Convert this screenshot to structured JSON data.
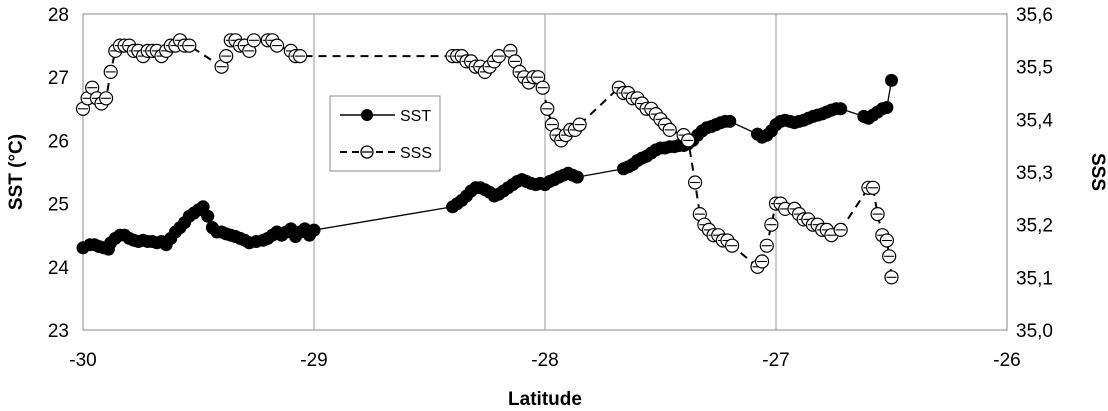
{
  "chart_data": {
    "type": "scatter",
    "xlabel": "Latitude",
    "ylabel_left": "SST (°C)",
    "ylabel_right": "SSS",
    "xlim": [
      -30,
      -26
    ],
    "ylim_left": [
      23,
      28
    ],
    "ylim_right": [
      35.0,
      35.6
    ],
    "x_ticks": [
      "-30",
      "-29",
      "-28",
      "-27",
      "-26"
    ],
    "x_tick_values": [
      -30,
      -29,
      -28,
      -27,
      -26
    ],
    "y_left_ticks": [
      "23",
      "24",
      "25",
      "26",
      "27",
      "28"
    ],
    "y_left_tick_values": [
      23,
      24,
      25,
      26,
      27,
      28
    ],
    "y_right_ticks": [
      "35,0",
      "35,1",
      "35,2",
      "35,3",
      "35,4",
      "35,5",
      "35,6"
    ],
    "y_right_tick_values": [
      35.0,
      35.1,
      35.2,
      35.3,
      35.4,
      35.5,
      35.6
    ],
    "grid": "vertical",
    "legend_position": "upper-middle",
    "series": [
      {
        "name": "SST",
        "axis": "left",
        "line": "solid",
        "marker": "filled-circle",
        "color": "#000000",
        "x": [
          -30.0,
          -29.97,
          -29.95,
          -29.93,
          -29.91,
          -29.89,
          -29.88,
          -29.86,
          -29.84,
          -29.82,
          -29.8,
          -29.78,
          -29.76,
          -29.74,
          -29.72,
          -29.7,
          -29.68,
          -29.66,
          -29.64,
          -29.62,
          -29.6,
          -29.58,
          -29.56,
          -29.54,
          -29.52,
          -29.5,
          -29.48,
          -29.46,
          -29.44,
          -29.42,
          -29.4,
          -29.38,
          -29.36,
          -29.34,
          -29.32,
          -29.3,
          -29.28,
          -29.25,
          -29.22,
          -29.2,
          -29.18,
          -29.16,
          -29.14,
          -29.12,
          -29.1,
          -29.08,
          -29.06,
          -29.04,
          -29.02,
          -29.0,
          -28.4,
          -28.38,
          -28.36,
          -28.34,
          -28.32,
          -28.3,
          -28.28,
          -28.26,
          -28.24,
          -28.22,
          -28.2,
          -28.18,
          -28.16,
          -28.14,
          -28.12,
          -28.1,
          -28.08,
          -28.06,
          -28.04,
          -28.02,
          -28.0,
          -27.98,
          -27.96,
          -27.94,
          -27.92,
          -27.9,
          -27.88,
          -27.86,
          -27.66,
          -27.64,
          -27.62,
          -27.6,
          -27.58,
          -27.56,
          -27.54,
          -27.52,
          -27.5,
          -27.48,
          -27.46,
          -27.44,
          -27.42,
          -27.4,
          -27.38,
          -27.36,
          -27.34,
          -27.32,
          -27.3,
          -27.28,
          -27.26,
          -27.24,
          -27.22,
          -27.2,
          -27.08,
          -27.06,
          -27.04,
          -27.02,
          -27.0,
          -26.98,
          -26.96,
          -26.94,
          -26.92,
          -26.9,
          -26.88,
          -26.86,
          -26.84,
          -26.82,
          -26.8,
          -26.78,
          -26.76,
          -26.74,
          -26.72,
          -26.62,
          -26.6,
          -26.58,
          -26.56,
          -26.54,
          -26.52,
          -26.5
        ],
        "y": [
          24.3,
          24.35,
          24.35,
          24.32,
          24.3,
          24.28,
          24.38,
          24.45,
          24.5,
          24.5,
          24.45,
          24.42,
          24.4,
          24.42,
          24.4,
          24.4,
          24.38,
          24.4,
          24.35,
          24.45,
          24.55,
          24.62,
          24.7,
          24.8,
          24.85,
          24.9,
          24.95,
          24.8,
          24.62,
          24.55,
          24.55,
          24.52,
          24.5,
          24.48,
          24.45,
          24.42,
          24.38,
          24.4,
          24.42,
          24.45,
          24.5,
          24.55,
          24.5,
          24.55,
          24.6,
          24.48,
          24.55,
          24.6,
          24.5,
          24.58,
          24.95,
          25.0,
          25.05,
          25.12,
          25.2,
          25.25,
          25.25,
          25.22,
          25.18,
          25.12,
          25.15,
          25.2,
          25.25,
          25.3,
          25.35,
          25.38,
          25.35,
          25.32,
          25.3,
          25.32,
          25.3,
          25.35,
          25.38,
          25.42,
          25.45,
          25.48,
          25.45,
          25.42,
          25.55,
          25.58,
          25.62,
          25.68,
          25.72,
          25.75,
          25.8,
          25.85,
          25.88,
          25.88,
          25.9,
          25.9,
          25.92,
          25.92,
          25.95,
          26.0,
          26.08,
          26.15,
          26.2,
          26.22,
          26.25,
          26.28,
          26.3,
          26.3,
          26.1,
          26.05,
          26.08,
          26.15,
          26.25,
          26.3,
          26.32,
          26.3,
          26.28,
          26.3,
          26.32,
          26.35,
          26.38,
          26.4,
          26.42,
          26.45,
          26.48,
          26.5,
          26.5,
          26.38,
          26.35,
          26.4,
          26.45,
          26.5,
          26.52,
          26.95
        ],
        "polyline_x": [
          -30.0,
          -29.97,
          -29.95,
          -29.93,
          -29.91,
          -29.89,
          -29.88,
          -29.86,
          -29.84,
          -29.82,
          -29.8,
          -29.78,
          -29.76,
          -29.74,
          -29.72,
          -29.7,
          -29.68,
          -29.66,
          -29.64,
          -29.62,
          -29.6,
          -29.58,
          -29.56,
          -29.54,
          -29.52,
          -29.5,
          -29.48,
          -29.46,
          -29.44,
          -29.42,
          -29.4,
          -29.38,
          -29.36,
          -29.34,
          -29.32,
          -29.3,
          -29.28,
          -29.25,
          -29.22,
          -29.2,
          -29.18,
          -29.16,
          -29.14,
          -29.12,
          -29.1,
          -29.08,
          -29.06,
          -29.04,
          -29.02,
          -29.0,
          -28.4,
          -28.38,
          -28.36,
          -28.34,
          -28.32,
          -28.3,
          -28.28,
          -28.26,
          -28.24,
          -28.22,
          -28.2,
          -28.18,
          -28.16,
          -28.14,
          -28.12,
          -28.1,
          -28.08,
          -28.06,
          -28.04,
          -28.02,
          -28.0,
          -27.98,
          -27.96,
          -27.94,
          -27.92,
          -27.9,
          -27.88,
          -27.86,
          -27.66,
          -27.64,
          -27.62,
          -27.6,
          -27.58,
          -27.56,
          -27.54,
          -27.52,
          -27.5,
          -27.48,
          -27.46,
          -27.44,
          -27.42,
          -27.4,
          -27.38,
          -27.36,
          -27.34,
          -27.32,
          -27.3,
          -27.28,
          -27.26,
          -27.24,
          -27.22,
          -27.2,
          -27.08,
          -27.06,
          -27.04,
          -27.02,
          -27.0,
          -26.98,
          -26.96,
          -26.94,
          -26.92,
          -26.9,
          -26.88,
          -26.86,
          -26.84,
          -26.82,
          -26.8,
          -26.78,
          -26.76,
          -26.74,
          -26.72,
          -26.62,
          -26.6,
          -26.58,
          -26.56,
          -26.54,
          -26.52,
          -26.5
        ]
      },
      {
        "name": "SSS",
        "axis": "right",
        "line": "dashed",
        "marker": "open-circle",
        "color": "#000000",
        "x": [
          -30.0,
          -29.98,
          -29.96,
          -29.94,
          -29.92,
          -29.9,
          -29.88,
          -29.86,
          -29.84,
          -29.82,
          -29.8,
          -29.78,
          -29.76,
          -29.74,
          -29.72,
          -29.7,
          -29.68,
          -29.66,
          -29.64,
          -29.62,
          -29.6,
          -29.58,
          -29.56,
          -29.54,
          -29.4,
          -29.38,
          -29.36,
          -29.34,
          -29.32,
          -29.3,
          -29.28,
          -29.26,
          -29.2,
          -29.18,
          -29.16,
          -29.1,
          -29.08,
          -29.06,
          -28.4,
          -28.38,
          -28.36,
          -28.34,
          -28.32,
          -28.3,
          -28.28,
          -28.26,
          -28.24,
          -28.22,
          -28.2,
          -28.15,
          -28.13,
          -28.11,
          -28.09,
          -28.07,
          -28.05,
          -28.03,
          -28.01,
          -27.99,
          -27.97,
          -27.95,
          -27.93,
          -27.91,
          -27.89,
          -27.87,
          -27.85,
          -27.68,
          -27.66,
          -27.64,
          -27.62,
          -27.6,
          -27.58,
          -27.56,
          -27.54,
          -27.52,
          -27.5,
          -27.48,
          -27.46,
          -27.4,
          -27.38,
          -27.35,
          -27.33,
          -27.31,
          -27.29,
          -27.27,
          -27.25,
          -27.23,
          -27.21,
          -27.19,
          -27.08,
          -27.06,
          -27.04,
          -27.02,
          -27.0,
          -26.98,
          -26.96,
          -26.92,
          -26.9,
          -26.88,
          -26.86,
          -26.84,
          -26.82,
          -26.8,
          -26.78,
          -26.76,
          -26.72,
          -26.6,
          -26.58,
          -26.56,
          -26.54,
          -26.52,
          -26.51,
          -26.5
        ],
        "y": [
          35.42,
          35.44,
          35.46,
          35.44,
          35.43,
          35.44,
          35.49,
          35.53,
          35.54,
          35.54,
          35.54,
          35.53,
          35.53,
          35.52,
          35.53,
          35.53,
          35.53,
          35.52,
          35.53,
          35.54,
          35.54,
          35.55,
          35.54,
          35.54,
          35.5,
          35.52,
          35.55,
          35.55,
          35.54,
          35.54,
          35.53,
          35.55,
          35.55,
          35.55,
          35.54,
          35.53,
          35.52,
          35.52,
          35.52,
          35.52,
          35.52,
          35.51,
          35.51,
          35.5,
          35.5,
          35.49,
          35.5,
          35.51,
          35.52,
          35.53,
          35.51,
          35.49,
          35.48,
          35.47,
          35.48,
          35.48,
          35.46,
          35.42,
          35.39,
          35.37,
          35.36,
          35.37,
          35.38,
          35.38,
          35.39,
          35.46,
          35.45,
          35.45,
          35.44,
          35.44,
          35.43,
          35.42,
          35.42,
          35.41,
          35.4,
          35.39,
          35.38,
          35.37,
          35.36,
          35.28,
          35.22,
          35.2,
          35.19,
          35.18,
          35.18,
          35.17,
          35.17,
          35.16,
          35.12,
          35.13,
          35.16,
          35.2,
          35.24,
          35.24,
          35.23,
          35.23,
          35.22,
          35.21,
          35.21,
          35.2,
          35.2,
          35.19,
          35.19,
          35.18,
          35.19,
          35.27,
          35.27,
          35.22,
          35.18,
          35.17,
          35.14,
          35.1
        ],
        "polyline_x": [
          -30.0,
          -29.98,
          -29.96,
          -29.94,
          -29.92,
          -29.9,
          -29.88,
          -29.86,
          -29.84,
          -29.82,
          -29.8,
          -29.78,
          -29.76,
          -29.74,
          -29.72,
          -29.7,
          -29.68,
          -29.66,
          -29.64,
          -29.62,
          -29.6,
          -29.58,
          -29.56,
          -29.54,
          -29.4,
          -29.38,
          -29.36,
          -29.34,
          -29.32,
          -29.3,
          -29.28,
          -29.26,
          -29.2,
          -29.18,
          -29.16,
          -29.1,
          -29.08,
          -29.06,
          -28.4,
          -28.38,
          -28.36,
          -28.34,
          -28.32,
          -28.3,
          -28.28,
          -28.26,
          -28.24,
          -28.22,
          -28.2,
          -28.15,
          -28.13,
          -28.11,
          -28.09,
          -28.07,
          -28.05,
          -28.03,
          -28.01,
          -27.99,
          -27.97,
          -27.95,
          -27.93,
          -27.91,
          -27.89,
          -27.87,
          -27.85,
          -27.68,
          -27.66,
          -27.64,
          -27.62,
          -27.6,
          -27.58,
          -27.56,
          -27.54,
          -27.52,
          -27.5,
          -27.48,
          -27.46,
          -27.4,
          -27.38,
          -27.35,
          -27.33,
          -27.31,
          -27.29,
          -27.27,
          -27.25,
          -27.23,
          -27.21,
          -27.19,
          -27.08,
          -27.06,
          -27.04,
          -27.02,
          -27.0,
          -26.98,
          -26.96,
          -26.92,
          -26.9,
          -26.88,
          -26.86,
          -26.84,
          -26.82,
          -26.8,
          -26.78,
          -26.76,
          -26.72,
          -26.6,
          -26.58,
          -26.56,
          -26.54,
          -26.52,
          -26.51,
          -26.5
        ]
      }
    ]
  }
}
